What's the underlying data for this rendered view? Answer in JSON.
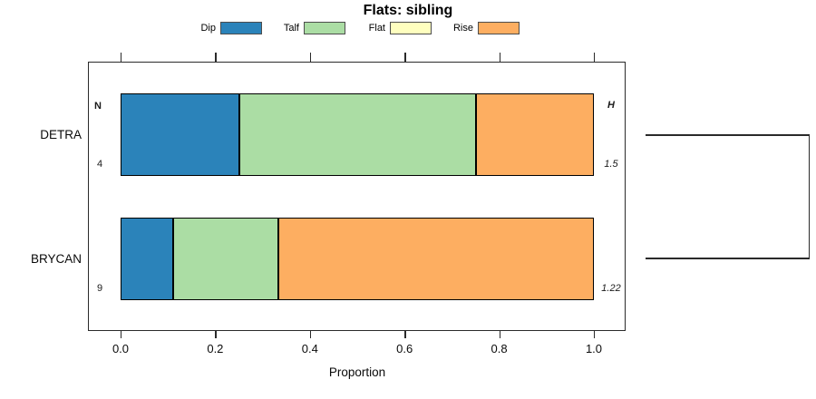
{
  "title": "Flats: sibling",
  "legend": {
    "position": "top",
    "items": [
      {
        "label": "Dip",
        "color": "#2B83BA"
      },
      {
        "label": "Talf",
        "color": "#ABDDA4"
      },
      {
        "label": "Flat",
        "color": "#FFFFBF"
      },
      {
        "label": "Rise",
        "color": "#FDAE61"
      }
    ]
  },
  "axis": {
    "xlabel": "Proportion",
    "tick_labels": [
      "0.0",
      "0.2",
      "0.4",
      "0.6",
      "0.8",
      "1.0"
    ]
  },
  "headers": {
    "n": "N",
    "h": "H"
  },
  "rows": [
    {
      "label": "DETRA",
      "n": "4",
      "h": "1.5",
      "segments": [
        {
          "name": "Dip",
          "value": 0.25,
          "color": "#2B83BA"
        },
        {
          "name": "Talf",
          "value": 0.5,
          "color": "#ABDDA4"
        },
        {
          "name": "Flat",
          "value": 0.0,
          "color": "#FFFFBF"
        },
        {
          "name": "Rise",
          "value": 0.25,
          "color": "#FDAE61"
        }
      ]
    },
    {
      "label": "BRYCAN",
      "n": "9",
      "h": "1.22",
      "segments": [
        {
          "name": "Dip",
          "value": 0.111,
          "color": "#2B83BA"
        },
        {
          "name": "Talf",
          "value": 0.222,
          "color": "#ABDDA4"
        },
        {
          "name": "Flat",
          "value": 0.0,
          "color": "#FFFFBF"
        },
        {
          "name": "Rise",
          "value": 0.667,
          "color": "#FDAE61"
        }
      ]
    }
  ],
  "chart_data": {
    "type": "bar",
    "subtype": "horizontal-stacked-proportion",
    "title": "Flats: sibling",
    "xlabel": "Proportion",
    "ylabel": "",
    "xlim": [
      0,
      1.0
    ],
    "xticks": [
      0.0,
      0.2,
      0.4,
      0.6,
      0.8,
      1.0
    ],
    "grid": false,
    "legend_position": "top",
    "categories": [
      "DETRA",
      "BRYCAN"
    ],
    "series": [
      {
        "name": "Dip",
        "color": "#2B83BA",
        "values": [
          0.25,
          0.111
        ]
      },
      {
        "name": "Talf",
        "color": "#ABDDA4",
        "values": [
          0.5,
          0.222
        ]
      },
      {
        "name": "Flat",
        "color": "#FFFFBF",
        "values": [
          0.0,
          0.0
        ]
      },
      {
        "name": "Rise",
        "color": "#FDAE61",
        "values": [
          0.25,
          0.667
        ]
      }
    ],
    "row_counts_N": [
      4,
      9
    ],
    "row_heights_H": [
      1.5,
      1.22
    ],
    "annotations": [
      "N",
      "H",
      "4",
      "1.5",
      "9",
      "1.22"
    ],
    "right_bracket": "dendrogram bracket joining DETRA and BRYCAN rows at far right"
  }
}
